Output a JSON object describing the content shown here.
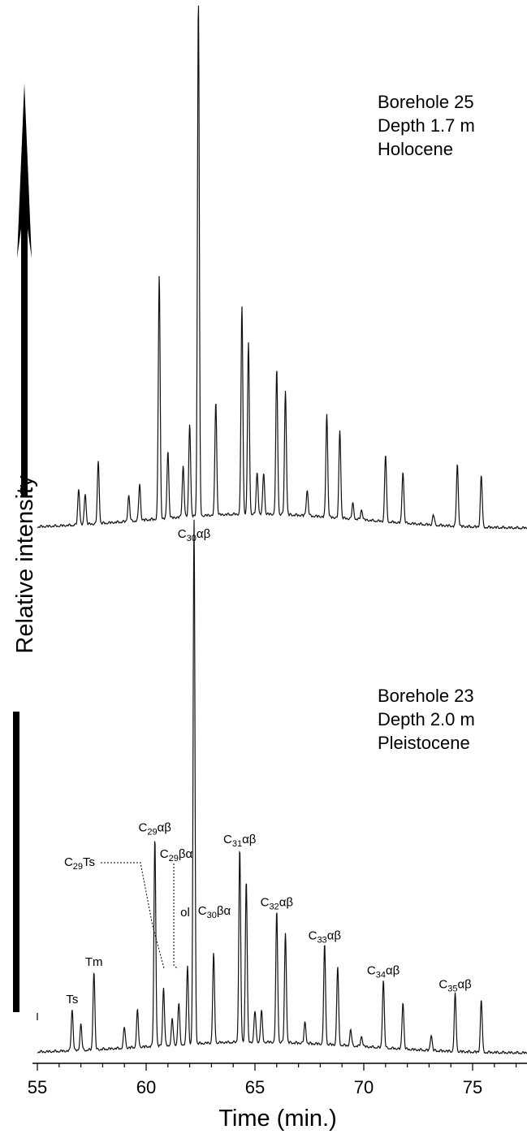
{
  "chart_data": {
    "type": "line",
    "xlabel": "Time (min.)",
    "ylabel": "Relative  intensity",
    "xlim": [
      55,
      77.5
    ],
    "xticks": [
      55,
      60,
      65,
      70,
      75
    ],
    "traces": [
      {
        "name": "Borehole 25 / Depth 1.7 m / Holocene",
        "info": [
          "Borehole 25",
          "Depth 1.7 m",
          "Holocene"
        ],
        "peaks": [
          {
            "t": 56.9,
            "h": 0.07
          },
          {
            "t": 57.2,
            "h": 0.06
          },
          {
            "t": 57.8,
            "h": 0.12
          },
          {
            "t": 59.2,
            "h": 0.05
          },
          {
            "t": 59.7,
            "h": 0.07
          },
          {
            "t": 60.6,
            "h": 0.47
          },
          {
            "t": 61.0,
            "h": 0.13
          },
          {
            "t": 61.7,
            "h": 0.1
          },
          {
            "t": 62.0,
            "h": 0.18
          },
          {
            "t": 62.4,
            "h": 1.0
          },
          {
            "t": 63.2,
            "h": 0.22
          },
          {
            "t": 64.4,
            "h": 0.4
          },
          {
            "t": 64.7,
            "h": 0.33
          },
          {
            "t": 65.1,
            "h": 0.08
          },
          {
            "t": 65.4,
            "h": 0.08
          },
          {
            "t": 66.0,
            "h": 0.28
          },
          {
            "t": 66.4,
            "h": 0.24
          },
          {
            "t": 67.4,
            "h": 0.05
          },
          {
            "t": 68.3,
            "h": 0.2
          },
          {
            "t": 68.9,
            "h": 0.17
          },
          {
            "t": 69.5,
            "h": 0.03
          },
          {
            "t": 69.9,
            "h": 0.02
          },
          {
            "t": 71.0,
            "h": 0.13
          },
          {
            "t": 71.8,
            "h": 0.1
          },
          {
            "t": 73.2,
            "h": 0.02
          },
          {
            "t": 74.3,
            "h": 0.12
          },
          {
            "t": 75.4,
            "h": 0.1
          }
        ]
      },
      {
        "name": "Borehole 23 / Depth 2.0 m / Pleistocene",
        "info": [
          "Borehole 23",
          "Depth 2.0 m",
          "Pleistocene"
        ],
        "peaks": [
          {
            "t": 56.6,
            "h": 0.08
          },
          {
            "t": 57.0,
            "h": 0.05
          },
          {
            "t": 57.6,
            "h": 0.15
          },
          {
            "t": 59.0,
            "h": 0.04
          },
          {
            "t": 59.6,
            "h": 0.07
          },
          {
            "t": 60.4,
            "h": 0.4
          },
          {
            "t": 60.8,
            "h": 0.11
          },
          {
            "t": 61.2,
            "h": 0.05
          },
          {
            "t": 61.5,
            "h": 0.08
          },
          {
            "t": 61.9,
            "h": 0.15
          },
          {
            "t": 62.2,
            "h": 1.0
          },
          {
            "t": 63.1,
            "h": 0.17
          },
          {
            "t": 64.3,
            "h": 0.37
          },
          {
            "t": 64.6,
            "h": 0.31
          },
          {
            "t": 65.0,
            "h": 0.06
          },
          {
            "t": 65.3,
            "h": 0.06
          },
          {
            "t": 66.0,
            "h": 0.25
          },
          {
            "t": 66.4,
            "h": 0.21
          },
          {
            "t": 67.3,
            "h": 0.04
          },
          {
            "t": 68.2,
            "h": 0.19
          },
          {
            "t": 68.8,
            "h": 0.15
          },
          {
            "t": 69.4,
            "h": 0.03
          },
          {
            "t": 69.9,
            "h": 0.02
          },
          {
            "t": 70.9,
            "h": 0.13
          },
          {
            "t": 71.8,
            "h": 0.09
          },
          {
            "t": 73.1,
            "h": 0.03
          },
          {
            "t": 74.2,
            "h": 0.11
          },
          {
            "t": 75.4,
            "h": 0.1
          }
        ],
        "annotations": [
          {
            "label": "Ts",
            "t": 56.6
          },
          {
            "label": "Tm",
            "t": 57.6
          },
          {
            "label": "C29αβ",
            "t": 60.4
          },
          {
            "label": "C29Ts",
            "t": 60.8
          },
          {
            "label": "C29βα",
            "t": 61.5
          },
          {
            "label": "ol",
            "t": 61.9
          },
          {
            "label": "C30αβ",
            "t": 62.2
          },
          {
            "label": "C30βα",
            "t": 63.1
          },
          {
            "label": "C31αβ",
            "t": 64.3
          },
          {
            "label": "C32αβ",
            "t": 66.0
          },
          {
            "label": "C33αβ",
            "t": 68.2
          },
          {
            "label": "C34αβ",
            "t": 70.9
          },
          {
            "label": "C35αβ",
            "t": 74.2
          }
        ]
      }
    ]
  },
  "colors": {
    "trace": "#111111",
    "text": "#000000",
    "background": "#ffffff"
  }
}
